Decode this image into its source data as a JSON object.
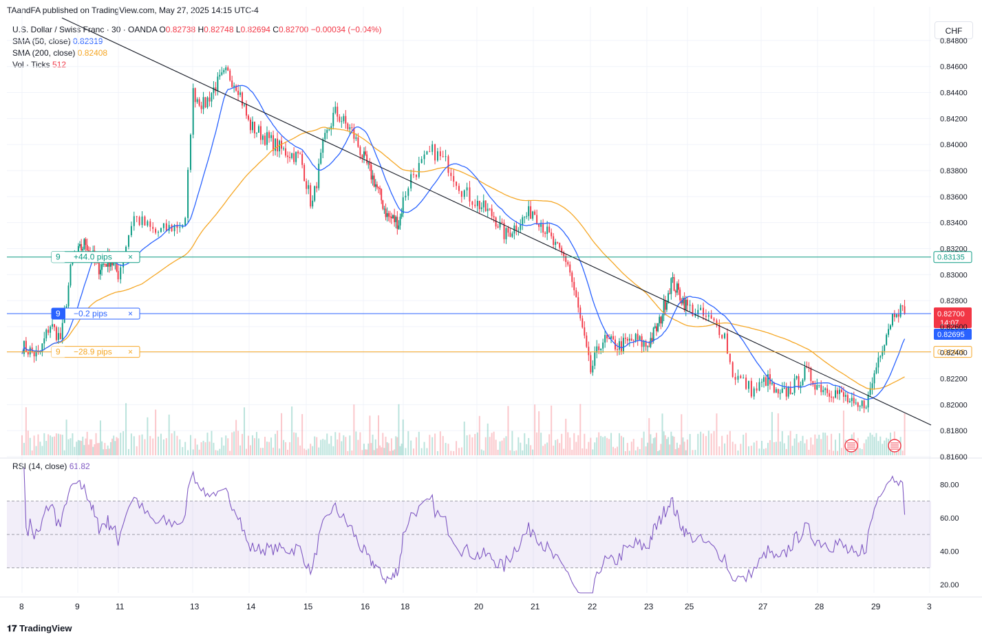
{
  "header": {
    "published": "TAandFA published on TradingView.com, May 27, 2025 14:15 UTC-4"
  },
  "legend": {
    "symbol": "U.S. Dollar / Swiss Franc · 30 · OANDA",
    "o_label": "O",
    "o_value": "0.82738",
    "h_label": "H",
    "h_value": "0.82748",
    "l_label": "L",
    "l_value": "0.82694",
    "c_label": "C",
    "c_value": "0.82700",
    "change": "−0.00034 (−0.04%)",
    "sma50_label": "SMA (50, close)",
    "sma50_value": "0.82319",
    "sma200_label": "SMA (200, close)",
    "sma200_value": "0.82408",
    "vol_label": "Vol · Ticks",
    "vol_value": "512",
    "rsi_label": "RSI (14, close)",
    "rsi_value": "61.82"
  },
  "toolbar": {
    "currency": "CHF"
  },
  "footer": {
    "brand": "TradingView"
  },
  "colors": {
    "up": "#089981",
    "down": "#f23645",
    "sma50": "#2962ff",
    "sma200": "#f5a623",
    "rsi": "#7e57c2",
    "grid": "#f0f3fa",
    "axis_text": "#131722"
  },
  "chart_data": [
    {
      "type": "candlestick",
      "symbol": "USDCHF",
      "timeframe": "30",
      "ylim": [
        0.816,
        0.849
      ],
      "y_ticks": [
        "0.84800",
        "0.84600",
        "0.84400",
        "0.84200",
        "0.84000",
        "0.83800",
        "0.83600",
        "0.83400",
        "0.83200",
        "0.83000",
        "0.82800",
        "0.82600",
        "0.82400",
        "0.82200",
        "0.82000",
        "0.81800",
        "0.81600"
      ],
      "x_ticks": [
        "8",
        "9",
        "11",
        "13",
        "14",
        "15",
        "16",
        "18",
        "20",
        "21",
        "22",
        "23",
        "25",
        "27",
        "28",
        "29",
        "3"
      ],
      "price_path": [
        {
          "d": 0.0,
          "p": 0.8245
        },
        {
          "d": 0.3,
          "p": 0.8237
        },
        {
          "d": 0.5,
          "p": 0.8262
        },
        {
          "d": 0.7,
          "p": 0.825
        },
        {
          "d": 0.9,
          "p": 0.8312
        },
        {
          "d": 1.2,
          "p": 0.8325
        },
        {
          "d": 1.5,
          "p": 0.8305
        },
        {
          "d": 1.8,
          "p": 0.8312
        },
        {
          "d": 2.0,
          "p": 0.83
        },
        {
          "d": 2.2,
          "p": 0.8345
        },
        {
          "d": 2.5,
          "p": 0.8332
        },
        {
          "d": 2.9,
          "p": 0.834
        },
        {
          "d": 3.0,
          "p": 0.844
        },
        {
          "d": 3.2,
          "p": 0.843
        },
        {
          "d": 3.4,
          "p": 0.8445
        },
        {
          "d": 3.6,
          "p": 0.8455
        },
        {
          "d": 3.8,
          "p": 0.8445
        },
        {
          "d": 4.0,
          "p": 0.8415
        },
        {
          "d": 4.3,
          "p": 0.8405
        },
        {
          "d": 4.6,
          "p": 0.8395
        },
        {
          "d": 4.9,
          "p": 0.839
        },
        {
          "d": 5.1,
          "p": 0.8352
        },
        {
          "d": 5.3,
          "p": 0.84
        },
        {
          "d": 5.5,
          "p": 0.8425
        },
        {
          "d": 5.8,
          "p": 0.841
        },
        {
          "d": 6.0,
          "p": 0.839
        },
        {
          "d": 6.3,
          "p": 0.837
        },
        {
          "d": 6.6,
          "p": 0.8345
        },
        {
          "d": 6.9,
          "p": 0.834
        },
        {
          "d": 7.1,
          "p": 0.8375
        },
        {
          "d": 7.4,
          "p": 0.8395
        },
        {
          "d": 7.6,
          "p": 0.8385
        },
        {
          "d": 7.8,
          "p": 0.8365
        },
        {
          "d": 8.0,
          "p": 0.8355
        },
        {
          "d": 8.3,
          "p": 0.8345
        },
        {
          "d": 8.5,
          "p": 0.833
        },
        {
          "d": 8.8,
          "p": 0.8342
        },
        {
          "d": 9.0,
          "p": 0.835
        },
        {
          "d": 9.2,
          "p": 0.8335
        },
        {
          "d": 9.4,
          "p": 0.832
        },
        {
          "d": 9.6,
          "p": 0.831
        },
        {
          "d": 9.8,
          "p": 0.827
        },
        {
          "d": 10.0,
          "p": 0.8225
        },
        {
          "d": 10.2,
          "p": 0.825
        },
        {
          "d": 10.5,
          "p": 0.8245
        },
        {
          "d": 10.8,
          "p": 0.825
        },
        {
          "d": 11.0,
          "p": 0.8245
        },
        {
          "d": 11.3,
          "p": 0.8262
        },
        {
          "d": 11.6,
          "p": 0.8295
        },
        {
          "d": 11.8,
          "p": 0.8285
        },
        {
          "d": 12.0,
          "p": 0.8275
        },
        {
          "d": 12.3,
          "p": 0.8265
        },
        {
          "d": 12.5,
          "p": 0.8255
        },
        {
          "d": 12.6,
          "p": 0.8225
        },
        {
          "d": 12.9,
          "p": 0.821
        },
        {
          "d": 13.1,
          "p": 0.822
        },
        {
          "d": 13.3,
          "p": 0.8205
        },
        {
          "d": 13.6,
          "p": 0.8215
        },
        {
          "d": 13.8,
          "p": 0.8225
        },
        {
          "d": 14.0,
          "p": 0.8215
        },
        {
          "d": 14.3,
          "p": 0.821
        },
        {
          "d": 14.5,
          "p": 0.8205
        },
        {
          "d": 14.7,
          "p": 0.8195
        },
        {
          "d": 14.9,
          "p": 0.8205
        },
        {
          "d": 15.1,
          "p": 0.824
        },
        {
          "d": 15.3,
          "p": 0.8265
        },
        {
          "d": 15.4,
          "p": 0.8275
        },
        {
          "d": 15.55,
          "p": 0.827
        }
      ]
    },
    {
      "type": "line",
      "series": [
        {
          "name": "SMA (50, close)",
          "last": 0.82319
        },
        {
          "name": "SMA (200, close)",
          "last": 0.82408
        }
      ]
    },
    {
      "type": "hline",
      "lines": [
        {
          "price": 0.83135,
          "label": "0.83135",
          "count": "9",
          "text": "+44.0 pips",
          "color": "#089981"
        },
        {
          "price": 0.827,
          "label": "0.82700",
          "count": "9",
          "text": "−0.2 pips",
          "color": "#2962ff"
        },
        {
          "price": 0.82406,
          "label": "0.82406",
          "count": "9",
          "text": "−28.9 pips",
          "color": "#f5a623"
        }
      ],
      "price_labels": {
        "last": "0.82700",
        "countdown": "14:07",
        "bid": "0.82695"
      }
    },
    {
      "type": "line",
      "name": "RSI (14, close)",
      "ylim": [
        15,
        90
      ],
      "y_ticks": [
        "80.00",
        "60.00",
        "40.00",
        "20.00"
      ],
      "bands": [
        30,
        50,
        70
      ],
      "last": 61.82
    }
  ]
}
